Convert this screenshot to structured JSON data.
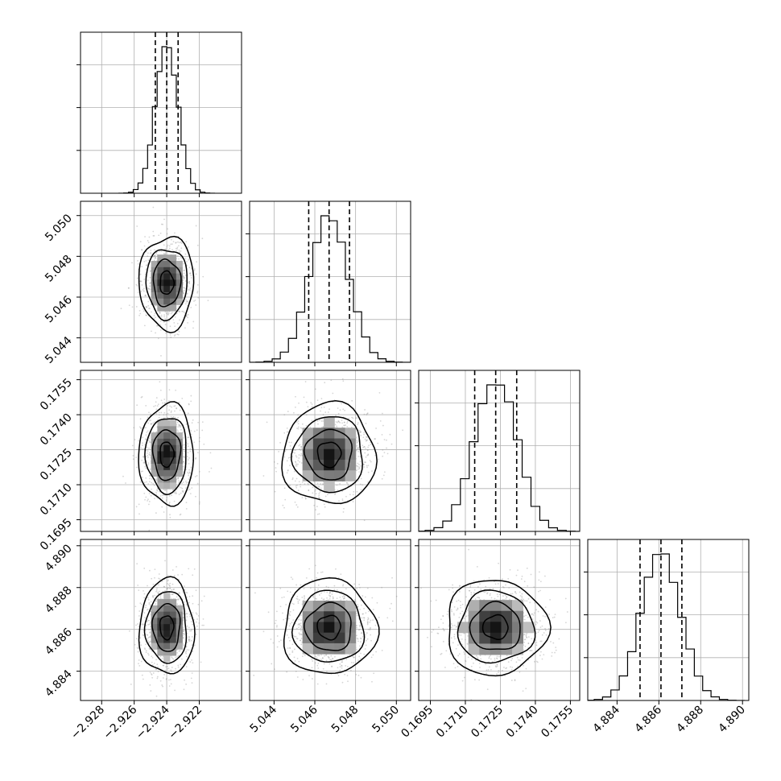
{
  "chart_data": {
    "type": "corner",
    "parameters": [
      {
        "mean": -2.924,
        "sigma": 0.0007,
        "range": [
          -2.9293,
          -2.9194
        ],
        "ticks": [
          -2.928,
          -2.926,
          -2.924,
          -2.922
        ],
        "tick_labels": [
          "−2.928",
          "−2.926",
          "−2.924",
          "−2.922"
        ],
        "quantiles": [
          -2.9247,
          -2.924,
          -2.9233
        ]
      },
      {
        "mean": 5.0467,
        "sigma": 0.00095,
        "range": [
          5.0428,
          5.0507
        ],
        "ticks": [
          5.044,
          5.046,
          5.048,
          5.05
        ],
        "tick_labels": [
          "5.044",
          "5.046",
          "5.048",
          "5.050"
        ],
        "quantiles": [
          5.0457,
          5.0467,
          5.0477
        ]
      },
      {
        "mean": 0.1723,
        "sigma": 0.0009,
        "range": [
          0.169,
          0.1759
        ],
        "ticks": [
          0.1695,
          0.171,
          0.1725,
          0.174,
          0.1755
        ],
        "tick_labels": [
          "0.1695",
          "0.1710",
          "0.1725",
          "0.1740",
          "0.1755"
        ],
        "quantiles": [
          0.1714,
          0.1723,
          0.1732
        ]
      },
      {
        "mean": 4.8861,
        "sigma": 0.00095,
        "range": [
          4.8826,
          4.8903
        ],
        "ticks": [
          4.884,
          4.886,
          4.888,
          4.89
        ],
        "tick_labels": [
          "4.884",
          "4.886",
          "4.888",
          "4.890"
        ],
        "quantiles": [
          4.8851,
          4.8861,
          4.8871
        ]
      }
    ],
    "histogram_bins": 20,
    "contour_levels_sigma": [
      0.5,
      1.0,
      1.5,
      2.0
    ],
    "grid": true,
    "colors": {
      "axes": "#000000",
      "grid": "#b0b0b0",
      "points": "#808080"
    }
  }
}
